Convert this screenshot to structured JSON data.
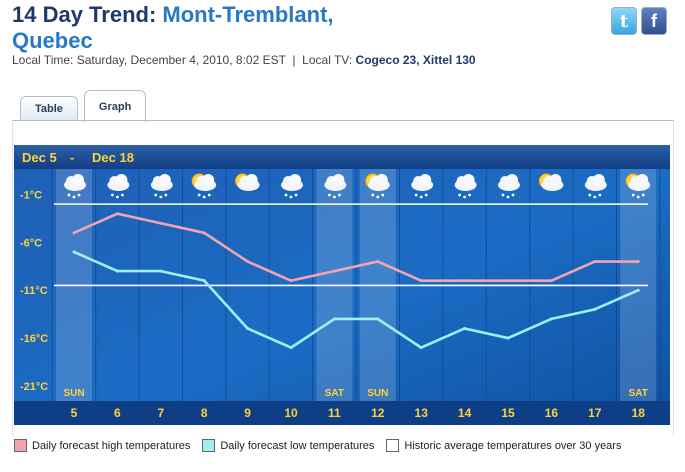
{
  "header": {
    "title_prefix": "14 Day Trend:",
    "location_line1": "Mont-Tremblant,",
    "location_line2": "Quebec",
    "local_time": "Local Time: Saturday, December 4, 2010, 8:02 EST",
    "separator": "|",
    "local_tv_label": "Local TV:",
    "local_tv_value": "Cogeco 23, Xittel 130"
  },
  "social": {
    "twitter_icon": "twitter-icon",
    "facebook_icon": "facebook-icon"
  },
  "tabs": [
    {
      "label": "Table"
    },
    {
      "label": "Graph"
    }
  ],
  "chart_data": {
    "type": "line",
    "date_range": {
      "start": "Dec 5",
      "separator": "-",
      "end": "Dec 18"
    },
    "x": [
      "5",
      "6",
      "7",
      "8",
      "9",
      "10",
      "11",
      "12",
      "13",
      "14",
      "15",
      "16",
      "17",
      "18"
    ],
    "day_labels": {
      "5": "SUN",
      "11": "SAT",
      "12": "SUN",
      "18": "SAT"
    },
    "weekend_days": [
      "5",
      "11",
      "12",
      "18"
    ],
    "y_ticks": [
      "-1°C",
      "-6°C",
      "-11°C",
      "-16°C",
      "-21°C"
    ],
    "ylim": [
      -23,
      0
    ],
    "conditions": [
      "snow",
      "snow",
      "snow",
      "sun-cloud-snow",
      "sun-cloud",
      "snow",
      "snow",
      "sun-cloud-snow",
      "snow",
      "snow",
      "snow",
      "sun-cloud",
      "snow",
      "sun-cloud-snow"
    ],
    "series": [
      {
        "name": "Daily forecast high temperatures",
        "color": "#f4a3b0",
        "values": [
          -5,
          -3,
          -4,
          -5,
          -8,
          -10,
          -9,
          -8,
          -10,
          -10,
          -10,
          -10,
          -8,
          -8
        ]
      },
      {
        "name": "Daily forecast low temperatures",
        "color": "#9ef0f4",
        "values": [
          -7,
          -9,
          -9,
          -10,
          -15,
          -17,
          -14,
          -14,
          -17,
          -15,
          -16,
          -14,
          -13,
          -11
        ]
      }
    ],
    "reference_lines": [
      {
        "name": "Historic average temperatures over 30 years",
        "color": "#ffffff",
        "values": [
          -2,
          -10.5
        ]
      }
    ]
  },
  "legend": [
    {
      "label": "Daily forecast high temperatures",
      "color": "#f4a3b0"
    },
    {
      "label": "Daily forecast low temperatures",
      "color": "#9ef0f4"
    },
    {
      "label": "Historic average temperatures over 30 years",
      "color": "#ffffff"
    }
  ]
}
